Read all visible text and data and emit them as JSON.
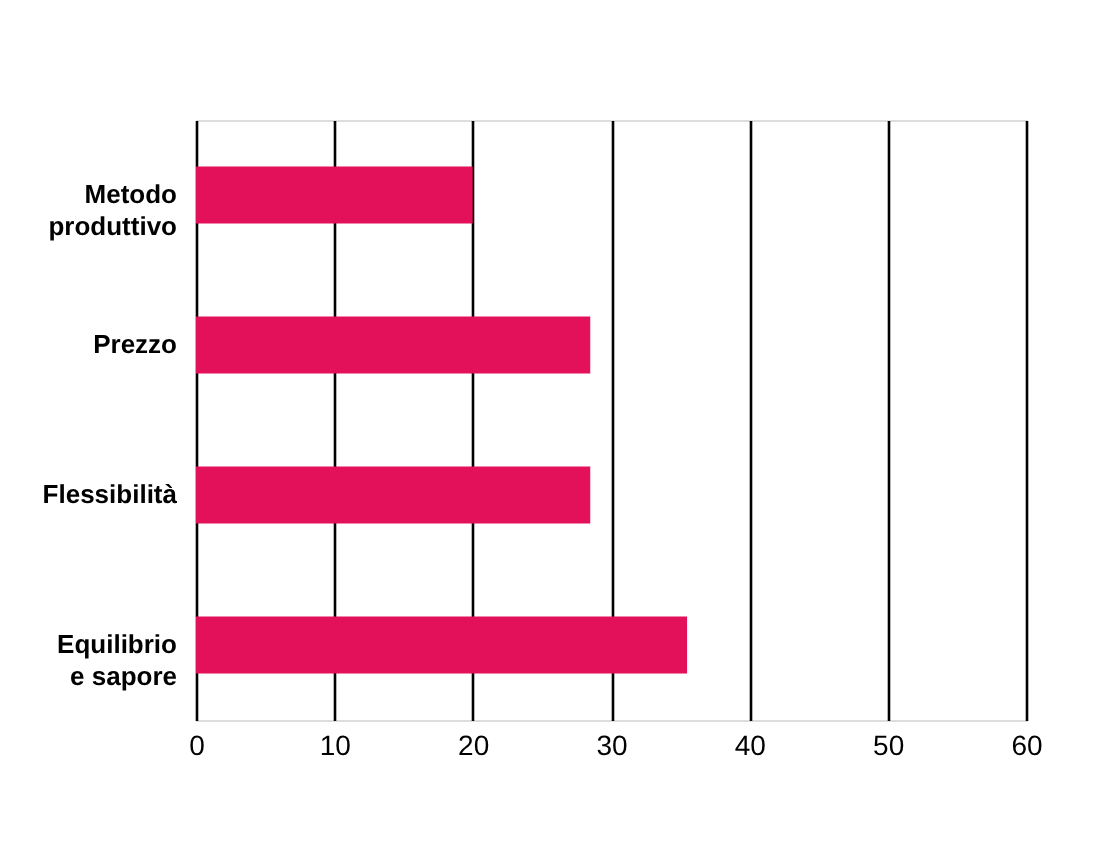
{
  "chart_data": {
    "type": "bar",
    "orientation": "horizontal",
    "categories": [
      "Metodo produttivo",
      "Prezzo",
      "Flessibilità",
      "Equilibrio e sapore"
    ],
    "values": [
      20,
      28.5,
      28.5,
      35.5
    ],
    "color": "#e3105a",
    "xlim": [
      0,
      60
    ],
    "xticks": [
      0,
      10,
      20,
      30,
      40,
      50,
      60
    ],
    "grid": "x"
  }
}
